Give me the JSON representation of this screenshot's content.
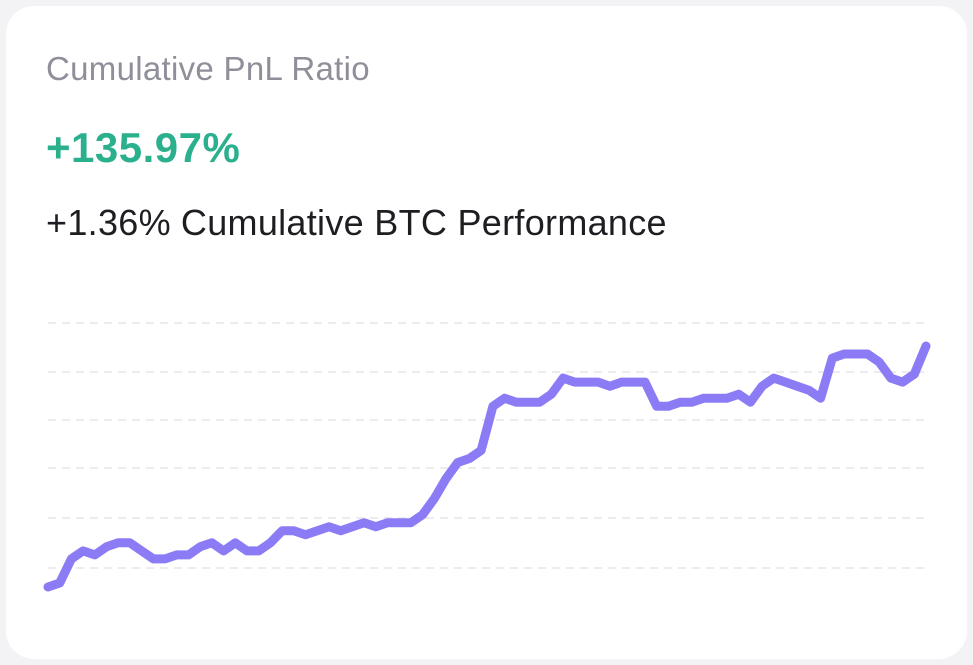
{
  "card": {
    "title": "Cumulative PnL Ratio",
    "value": "+135.97%",
    "btc_value": "+1.36%",
    "btc_label": "Cumulative BTC Performance"
  },
  "colors": {
    "value": "#2bb08e",
    "line": "#8b7cf6",
    "grid": "#ececef"
  },
  "chart_data": {
    "type": "line",
    "grid": "dashed horizontal",
    "series": [
      {
        "values": [
          0,
          1,
          7,
          9,
          8,
          10,
          11,
          11,
          9,
          7,
          7,
          8,
          8,
          10,
          11,
          9,
          11,
          9,
          9,
          11,
          14,
          14,
          13,
          14,
          15,
          14,
          15,
          16,
          15,
          16,
          16,
          16,
          18,
          22,
          27,
          31,
          32,
          34,
          45,
          47,
          46,
          46,
          46,
          48,
          52,
          51,
          51,
          51,
          50,
          51,
          51,
          51,
          45,
          45,
          46,
          46,
          47,
          47,
          47,
          48,
          46,
          50,
          52,
          51,
          50,
          49,
          47,
          57,
          58,
          58,
          58,
          56,
          52,
          51,
          53,
          60
        ]
      }
    ]
  }
}
